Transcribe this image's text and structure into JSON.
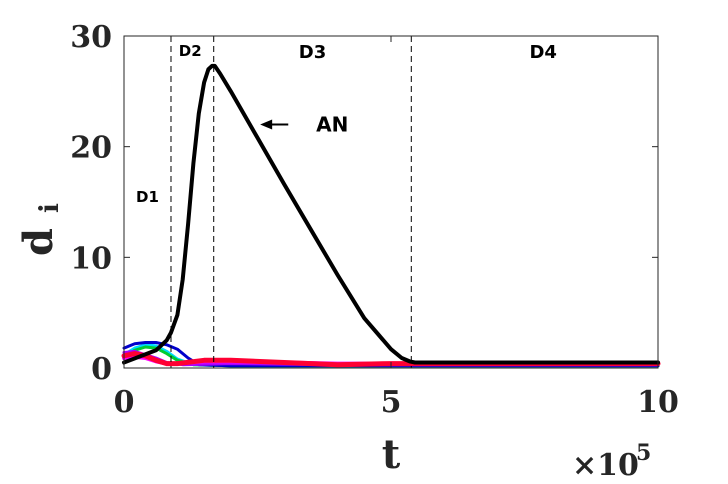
{
  "chart_data": {
    "type": "line",
    "xlabel": "t",
    "ylabel": "d",
    "ylabel_sub": "i",
    "x_multiplier": "×10",
    "x_multiplier_exp": "5",
    "xlim": [
      0,
      1000000
    ],
    "ylim": [
      0,
      30
    ],
    "xticks": [
      0,
      500000,
      1000000
    ],
    "xtick_labels": [
      "0",
      "5",
      "10"
    ],
    "yticks": [
      0,
      10,
      20,
      30
    ],
    "ytick_labels": [
      "0",
      "10",
      "20",
      "30"
    ],
    "grid": false,
    "dividers": [
      {
        "x": 88000
      },
      {
        "x": 168000
      },
      {
        "x": 538000
      }
    ],
    "regions": [
      {
        "label": "D1",
        "x": 44000,
        "y": 15
      },
      {
        "label": "D2",
        "x": 124000,
        "y": 28.2
      },
      {
        "label": "D3",
        "x": 353000,
        "y": 28
      },
      {
        "label": "D4",
        "x": 785000,
        "y": 28
      }
    ],
    "annotations": [
      {
        "text": "AN",
        "x": 390000,
        "y": 22,
        "arrow_to": [
          255000,
          22
        ]
      }
    ],
    "series": [
      {
        "color": "#000000",
        "width": 4,
        "x": [
          0,
          60000,
          80000,
          88000,
          100000,
          110000,
          120000,
          130000,
          140000,
          150000,
          158000,
          165000,
          170000,
          180000,
          200000,
          250000,
          300000,
          350000,
          400000,
          450000,
          500000,
          520000,
          535000,
          545000,
          560000,
          600000,
          800000,
          1000000
        ],
        "y": [
          0.5,
          1.6,
          2.5,
          3.2,
          4.8,
          8,
          13,
          18.5,
          23,
          25.8,
          27,
          27.3,
          27.3,
          26.6,
          25,
          20.8,
          16.6,
          12.5,
          8.4,
          4.5,
          1.7,
          0.9,
          0.6,
          0.5,
          0.5,
          0.5,
          0.5,
          0.5
        ]
      },
      {
        "color": "#00d8ff",
        "width": 3,
        "x": [
          0,
          20000,
          40000,
          60000,
          80000,
          100000,
          130000,
          200000,
          400000,
          600000,
          1000000
        ],
        "y": [
          1.2,
          1.8,
          2.1,
          2,
          1.5,
          0.8,
          0.3,
          0.2,
          0.2,
          0.2,
          0.2
        ]
      },
      {
        "color": "#00cc33",
        "width": 3,
        "x": [
          0,
          20000,
          40000,
          60000,
          80000,
          100000,
          130000,
          200000,
          400000,
          600000,
          1000000
        ],
        "y": [
          1,
          1.6,
          1.9,
          1.8,
          1.3,
          0.7,
          0.3,
          0.2,
          0.2,
          0.2,
          0.2
        ]
      },
      {
        "color": "#0000cc",
        "width": 3,
        "x": [
          0,
          20000,
          40000,
          60000,
          80000,
          100000,
          120000,
          140000,
          200000,
          400000,
          600000,
          1000000
        ],
        "y": [
          1.8,
          2.2,
          2.3,
          2.3,
          2.1,
          1.7,
          0.9,
          0.3,
          0.2,
          0.2,
          0.2,
          0.2
        ]
      },
      {
        "color": "#aa00ff",
        "width": 3,
        "x": [
          0,
          20000,
          40000,
          60000,
          80000,
          110000,
          200000,
          400000,
          600000,
          1000000
        ],
        "y": [
          1.4,
          1.5,
          1.2,
          0.9,
          0.5,
          0.3,
          0.4,
          0.3,
          0.3,
          0.3
        ]
      },
      {
        "color": "#ff00ff",
        "width": 4,
        "x": [
          0,
          20000,
          40000,
          60000,
          80000,
          100000,
          150000,
          200000,
          300000,
          400000,
          500000,
          600000,
          1000000
        ],
        "y": [
          0.9,
          1,
          0.9,
          0.6,
          0.4,
          0.4,
          0.6,
          0.6,
          0.5,
          0.4,
          0.4,
          0.4,
          0.4
        ]
      },
      {
        "color": "#ff0033",
        "width": 5,
        "x": [
          0,
          20000,
          40000,
          60000,
          80000,
          100000,
          150000,
          200000,
          300000,
          400000,
          500000,
          600000,
          1000000
        ],
        "y": [
          1.1,
          1.3,
          1.1,
          0.7,
          0.4,
          0.4,
          0.7,
          0.7,
          0.5,
          0.3,
          0.4,
          0.4,
          0.4
        ]
      }
    ]
  }
}
